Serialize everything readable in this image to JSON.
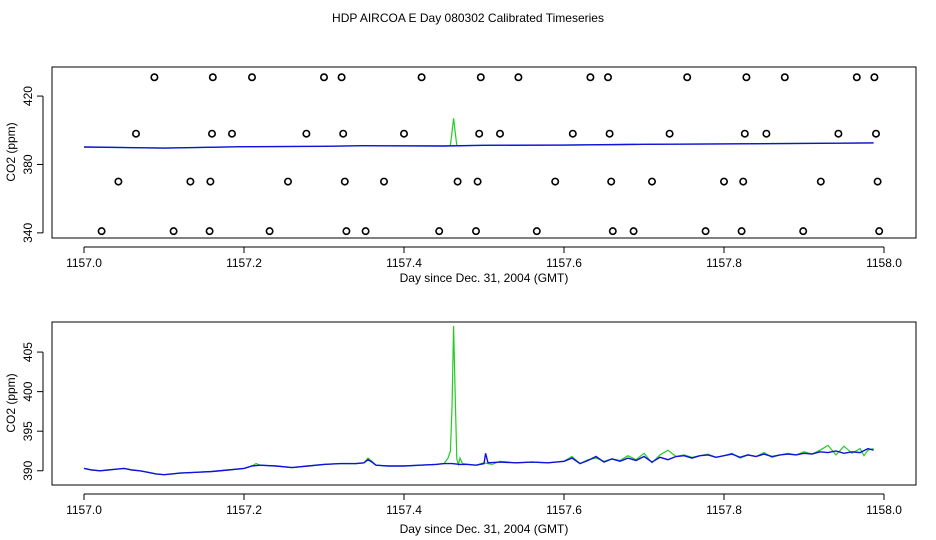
{
  "title": "HDP AIRCOA E  Day 080302  Calibrated Timeseries",
  "colors": {
    "series_green": "#22cc22",
    "series_blue": "#1111dd",
    "markers": "#000000"
  },
  "chart_data": [
    {
      "type": "scatter+line",
      "xlabel": "Day since Dec. 31, 2004 (GMT)",
      "ylabel": "CO2 (ppm)",
      "xlim": [
        1156.96,
        1158.04
      ],
      "ylim": [
        337,
        437
      ],
      "x_ticks": [
        1157.0,
        1157.2,
        1157.4,
        1157.6,
        1157.8,
        1158.0
      ],
      "x_tick_labels": [
        "1157.0",
        "1157.2",
        "1157.4",
        "1157.6",
        "1157.8",
        "1158.0"
      ],
      "y_ticks": [
        340,
        380,
        420
      ],
      "y_tick_labels": [
        "340",
        "380",
        "420"
      ],
      "grid": false,
      "calibration_points": [
        {
          "x": 1157.022,
          "y": 341
        },
        {
          "x": 1157.043,
          "y": 370
        },
        {
          "x": 1157.065,
          "y": 398
        },
        {
          "x": 1157.088,
          "y": 431
        },
        {
          "x": 1157.112,
          "y": 341
        },
        {
          "x": 1157.133,
          "y": 370
        },
        {
          "x": 1157.157,
          "y": 341
        },
        {
          "x": 1157.158,
          "y": 370
        },
        {
          "x": 1157.16,
          "y": 398
        },
        {
          "x": 1157.161,
          "y": 431
        },
        {
          "x": 1157.185,
          "y": 398
        },
        {
          "x": 1157.21,
          "y": 431
        },
        {
          "x": 1157.232,
          "y": 341
        },
        {
          "x": 1157.255,
          "y": 370
        },
        {
          "x": 1157.278,
          "y": 398
        },
        {
          "x": 1157.3,
          "y": 431
        },
        {
          "x": 1157.322,
          "y": 431
        },
        {
          "x": 1157.324,
          "y": 398
        },
        {
          "x": 1157.326,
          "y": 370
        },
        {
          "x": 1157.328,
          "y": 341
        },
        {
          "x": 1157.352,
          "y": 341
        },
        {
          "x": 1157.375,
          "y": 370
        },
        {
          "x": 1157.4,
          "y": 398
        },
        {
          "x": 1157.422,
          "y": 431
        },
        {
          "x": 1157.444,
          "y": 341
        },
        {
          "x": 1157.467,
          "y": 370
        },
        {
          "x": 1157.49,
          "y": 341
        },
        {
          "x": 1157.492,
          "y": 370
        },
        {
          "x": 1157.494,
          "y": 398
        },
        {
          "x": 1157.496,
          "y": 431
        },
        {
          "x": 1157.52,
          "y": 398
        },
        {
          "x": 1157.543,
          "y": 431
        },
        {
          "x": 1157.566,
          "y": 341
        },
        {
          "x": 1157.589,
          "y": 370
        },
        {
          "x": 1157.611,
          "y": 398
        },
        {
          "x": 1157.633,
          "y": 431
        },
        {
          "x": 1157.655,
          "y": 431
        },
        {
          "x": 1157.657,
          "y": 398
        },
        {
          "x": 1157.659,
          "y": 370
        },
        {
          "x": 1157.661,
          "y": 341
        },
        {
          "x": 1157.687,
          "y": 341
        },
        {
          "x": 1157.71,
          "y": 370
        },
        {
          "x": 1157.732,
          "y": 398
        },
        {
          "x": 1157.754,
          "y": 431
        },
        {
          "x": 1157.777,
          "y": 341
        },
        {
          "x": 1157.8,
          "y": 370
        },
        {
          "x": 1157.822,
          "y": 341
        },
        {
          "x": 1157.824,
          "y": 370
        },
        {
          "x": 1157.826,
          "y": 398
        },
        {
          "x": 1157.828,
          "y": 431
        },
        {
          "x": 1157.853,
          "y": 398
        },
        {
          "x": 1157.876,
          "y": 431
        },
        {
          "x": 1157.899,
          "y": 341
        },
        {
          "x": 1157.921,
          "y": 370
        },
        {
          "x": 1157.943,
          "y": 398
        },
        {
          "x": 1157.966,
          "y": 431
        },
        {
          "x": 1157.988,
          "y": 431
        },
        {
          "x": 1157.99,
          "y": 398
        },
        {
          "x": 1157.992,
          "y": 370
        },
        {
          "x": 1157.994,
          "y": 341
        }
      ],
      "green_series": [
        [
          1157.0,
          390.2
        ],
        [
          1157.1,
          389.6
        ],
        [
          1157.2,
          390.4
        ],
        [
          1157.3,
          390.6
        ],
        [
          1157.35,
          391
        ],
        [
          1157.45,
          390.8
        ],
        [
          1157.458,
          391
        ],
        [
          1157.462,
          407
        ],
        [
          1157.466,
          391
        ],
        [
          1157.5,
          391.2
        ],
        [
          1157.6,
          391.3
        ],
        [
          1157.7,
          391.8
        ],
        [
          1157.8,
          392
        ],
        [
          1157.9,
          392.3
        ],
        [
          1157.987,
          392.6
        ]
      ],
      "blue_series": [
        [
          1157.0,
          390.2
        ],
        [
          1157.1,
          389.6
        ],
        [
          1157.2,
          390.4
        ],
        [
          1157.3,
          390.6
        ],
        [
          1157.35,
          391
        ],
        [
          1157.45,
          390.8
        ],
        [
          1157.5,
          391.2
        ],
        [
          1157.6,
          391.3
        ],
        [
          1157.7,
          391.8
        ],
        [
          1157.8,
          392
        ],
        [
          1157.9,
          392.3
        ],
        [
          1157.987,
          392.6
        ]
      ]
    },
    {
      "type": "line",
      "xlabel": "Day since Dec. 31, 2004 (GMT)",
      "ylabel": "CO2 (ppm)",
      "xlim": [
        1156.96,
        1158.04
      ],
      "ylim": [
        388.2,
        408.8
      ],
      "x_ticks": [
        1157.0,
        1157.2,
        1157.4,
        1157.6,
        1157.8,
        1158.0
      ],
      "x_tick_labels": [
        "1157.0",
        "1157.2",
        "1157.4",
        "1157.6",
        "1157.8",
        "1158.0"
      ],
      "y_ticks": [
        390,
        395,
        400,
        405
      ],
      "y_tick_labels": [
        "390",
        "395",
        "400",
        "405"
      ],
      "grid": false,
      "green_series": [
        [
          1157.0,
          390.3
        ],
        [
          1157.01,
          390.1
        ],
        [
          1157.02,
          390.0
        ],
        [
          1157.03,
          390.1
        ],
        [
          1157.04,
          390.2
        ],
        [
          1157.05,
          390.3
        ],
        [
          1157.06,
          390.1
        ],
        [
          1157.07,
          390.0
        ],
        [
          1157.08,
          389.8
        ],
        [
          1157.09,
          389.6
        ],
        [
          1157.1,
          389.5
        ],
        [
          1157.11,
          389.6
        ],
        [
          1157.12,
          389.7
        ],
        [
          1157.14,
          389.8
        ],
        [
          1157.16,
          389.9
        ],
        [
          1157.18,
          390.1
        ],
        [
          1157.2,
          390.3
        ],
        [
          1157.21,
          390.6
        ],
        [
          1157.215,
          390.9
        ],
        [
          1157.22,
          390.7
        ],
        [
          1157.24,
          390.6
        ],
        [
          1157.26,
          390.4
        ],
        [
          1157.28,
          390.6
        ],
        [
          1157.3,
          390.8
        ],
        [
          1157.32,
          390.9
        ],
        [
          1157.34,
          390.9
        ],
        [
          1157.35,
          391.0
        ],
        [
          1157.355,
          391.6
        ],
        [
          1157.36,
          391.2
        ],
        [
          1157.365,
          390.7
        ],
        [
          1157.38,
          390.6
        ],
        [
          1157.4,
          390.6
        ],
        [
          1157.42,
          390.7
        ],
        [
          1157.44,
          390.8
        ],
        [
          1157.45,
          390.9
        ],
        [
          1157.455,
          391.6
        ],
        [
          1157.458,
          392.5
        ],
        [
          1157.46,
          398.0
        ],
        [
          1157.462,
          408.3
        ],
        [
          1157.464,
          399.5
        ],
        [
          1157.466,
          391.5
        ],
        [
          1157.468,
          390.8
        ],
        [
          1157.47,
          391.6
        ],
        [
          1157.473,
          390.9
        ],
        [
          1157.48,
          390.8
        ],
        [
          1157.49,
          390.7
        ],
        [
          1157.5,
          391.0
        ],
        [
          1157.51,
          390.8
        ],
        [
          1157.52,
          391.2
        ],
        [
          1157.54,
          391.0
        ],
        [
          1157.56,
          391.1
        ],
        [
          1157.58,
          391.0
        ],
        [
          1157.6,
          391.2
        ],
        [
          1157.61,
          391.8
        ],
        [
          1157.62,
          390.9
        ],
        [
          1157.63,
          391.4
        ],
        [
          1157.64,
          391.6
        ],
        [
          1157.65,
          391.2
        ],
        [
          1157.66,
          391.5
        ],
        [
          1157.67,
          391.3
        ],
        [
          1157.68,
          391.9
        ],
        [
          1157.69,
          391.4
        ],
        [
          1157.7,
          392.2
        ],
        [
          1157.71,
          391.0
        ],
        [
          1157.72,
          392.0
        ],
        [
          1157.73,
          392.6
        ],
        [
          1157.74,
          391.8
        ],
        [
          1157.75,
          392.0
        ],
        [
          1157.76,
          391.7
        ],
        [
          1157.77,
          391.9
        ],
        [
          1157.78,
          392.1
        ],
        [
          1157.79,
          391.7
        ],
        [
          1157.8,
          391.9
        ],
        [
          1157.81,
          392.2
        ],
        [
          1157.82,
          391.6
        ],
        [
          1157.83,
          392.0
        ],
        [
          1157.84,
          391.8
        ],
        [
          1157.85,
          392.3
        ],
        [
          1157.86,
          391.7
        ],
        [
          1157.87,
          392.0
        ],
        [
          1157.88,
          392.2
        ],
        [
          1157.89,
          392.0
        ],
        [
          1157.9,
          392.4
        ],
        [
          1157.91,
          392.1
        ],
        [
          1157.92,
          392.6
        ],
        [
          1157.93,
          393.2
        ],
        [
          1157.94,
          392.0
        ],
        [
          1157.95,
          393.1
        ],
        [
          1157.96,
          392.2
        ],
        [
          1157.97,
          392.8
        ],
        [
          1157.975,
          391.9
        ],
        [
          1157.98,
          392.6
        ],
        [
          1157.987,
          392.8
        ]
      ],
      "blue_series": [
        [
          1157.0,
          390.3
        ],
        [
          1157.01,
          390.1
        ],
        [
          1157.02,
          390.0
        ],
        [
          1157.03,
          390.1
        ],
        [
          1157.04,
          390.2
        ],
        [
          1157.05,
          390.3
        ],
        [
          1157.06,
          390.1
        ],
        [
          1157.07,
          390.0
        ],
        [
          1157.08,
          389.8
        ],
        [
          1157.09,
          389.6
        ],
        [
          1157.1,
          389.5
        ],
        [
          1157.11,
          389.6
        ],
        [
          1157.12,
          389.7
        ],
        [
          1157.14,
          389.8
        ],
        [
          1157.16,
          389.9
        ],
        [
          1157.18,
          390.1
        ],
        [
          1157.2,
          390.3
        ],
        [
          1157.21,
          390.6
        ],
        [
          1157.22,
          390.7
        ],
        [
          1157.24,
          390.6
        ],
        [
          1157.26,
          390.4
        ],
        [
          1157.28,
          390.6
        ],
        [
          1157.3,
          390.8
        ],
        [
          1157.32,
          390.9
        ],
        [
          1157.34,
          390.9
        ],
        [
          1157.35,
          391.0
        ],
        [
          1157.355,
          391.4
        ],
        [
          1157.36,
          391.1
        ],
        [
          1157.365,
          390.7
        ],
        [
          1157.38,
          390.6
        ],
        [
          1157.4,
          390.6
        ],
        [
          1157.42,
          390.7
        ],
        [
          1157.44,
          390.8
        ],
        [
          1157.45,
          390.9
        ],
        [
          1157.46,
          390.9
        ],
        [
          1157.47,
          390.8
        ],
        [
          1157.48,
          390.8
        ],
        [
          1157.49,
          390.7
        ],
        [
          1157.5,
          390.9
        ],
        [
          1157.502,
          392.2
        ],
        [
          1157.505,
          391.0
        ],
        [
          1157.52,
          391.1
        ],
        [
          1157.54,
          391.0
        ],
        [
          1157.56,
          391.1
        ],
        [
          1157.58,
          391.0
        ],
        [
          1157.6,
          391.2
        ],
        [
          1157.61,
          391.6
        ],
        [
          1157.62,
          390.9
        ],
        [
          1157.63,
          391.3
        ],
        [
          1157.64,
          391.8
        ],
        [
          1157.65,
          391.1
        ],
        [
          1157.66,
          391.5
        ],
        [
          1157.67,
          391.2
        ],
        [
          1157.68,
          391.6
        ],
        [
          1157.69,
          391.3
        ],
        [
          1157.7,
          391.8
        ],
        [
          1157.71,
          391.1
        ],
        [
          1157.72,
          391.7
        ],
        [
          1157.73,
          391.4
        ],
        [
          1157.74,
          391.8
        ],
        [
          1157.75,
          391.9
        ],
        [
          1157.76,
          391.6
        ],
        [
          1157.77,
          391.9
        ],
        [
          1157.78,
          392.0
        ],
        [
          1157.79,
          391.7
        ],
        [
          1157.8,
          391.9
        ],
        [
          1157.81,
          392.1
        ],
        [
          1157.82,
          391.7
        ],
        [
          1157.83,
          392.0
        ],
        [
          1157.84,
          391.8
        ],
        [
          1157.85,
          392.1
        ],
        [
          1157.86,
          391.8
        ],
        [
          1157.87,
          392.0
        ],
        [
          1157.88,
          392.1
        ],
        [
          1157.89,
          392.0
        ],
        [
          1157.9,
          392.2
        ],
        [
          1157.91,
          392.1
        ],
        [
          1157.92,
          392.4
        ],
        [
          1157.93,
          392.3
        ],
        [
          1157.94,
          392.5
        ],
        [
          1157.95,
          392.2
        ],
        [
          1157.96,
          392.4
        ],
        [
          1157.97,
          392.3
        ],
        [
          1157.98,
          392.8
        ],
        [
          1157.987,
          392.6
        ]
      ]
    }
  ]
}
